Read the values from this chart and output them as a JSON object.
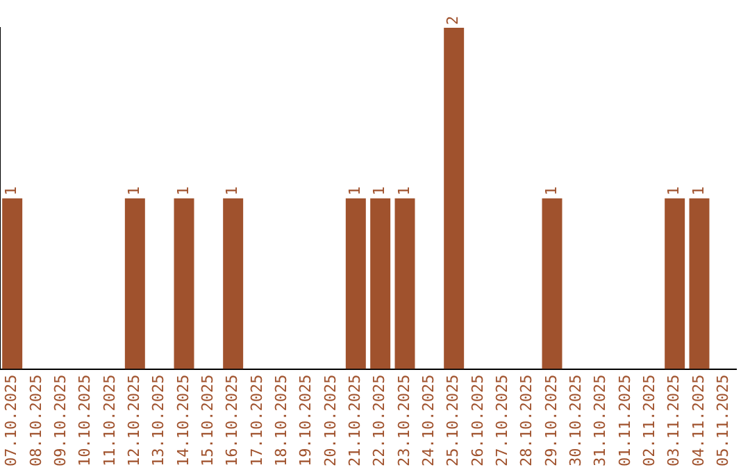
{
  "chart_data": {
    "type": "bar",
    "categories": [
      "07.10.2025",
      "08.10.2025",
      "09.10.2025",
      "10.10.2025",
      "11.10.2025",
      "12.10.2025",
      "13.10.2025",
      "14.10.2025",
      "15.10.2025",
      "16.10.2025",
      "17.10.2025",
      "18.10.2025",
      "19.10.2025",
      "20.10.2025",
      "21.10.2025",
      "22.10.2025",
      "23.10.2025",
      "24.10.2025",
      "25.10.2025",
      "26.10.2025",
      "27.10.2025",
      "28.10.2025",
      "29.10.2025",
      "30.10.2025",
      "31.10.2025",
      "01.11.2025",
      "02.11.2025",
      "03.11.2025",
      "04.11.2025",
      "05.11.2025"
    ],
    "values": [
      1,
      0,
      0,
      0,
      0,
      1,
      0,
      1,
      0,
      1,
      0,
      0,
      0,
      0,
      1,
      1,
      1,
      0,
      2,
      0,
      0,
      0,
      1,
      0,
      0,
      0,
      0,
      1,
      1,
      0
    ],
    "value_labels": [
      "1",
      null,
      null,
      null,
      null,
      "1",
      null,
      "1",
      null,
      "1",
      null,
      null,
      null,
      null,
      "1",
      "1",
      "1",
      null,
      "2",
      null,
      null,
      null,
      "1",
      null,
      null,
      null,
      null,
      "1",
      "1",
      null
    ],
    "color": "#a0522d",
    "grid": false,
    "legend": false
  }
}
